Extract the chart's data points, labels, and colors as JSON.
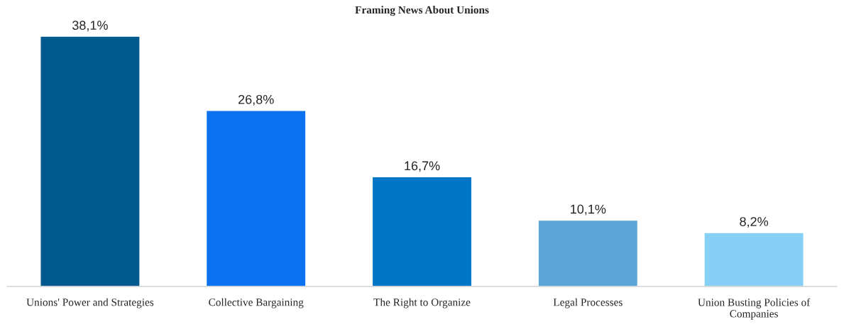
{
  "chart_data": {
    "type": "bar",
    "title": "Framing News About Unions",
    "categories": [
      "Unions' Power and Strategies",
      "Collective Bargaining",
      "The Right to Organize",
      "Legal Processes",
      "Union Busting Policies of Companies"
    ],
    "values": [
      38.1,
      26.8,
      16.7,
      10.1,
      8.2
    ],
    "value_labels": [
      "38,1%",
      "26,8%",
      "16,7%",
      "10,1%",
      "8,2%"
    ],
    "colors": [
      "#005a8e",
      "#0d72f0",
      "#0077c6",
      "#5ba6d8",
      "#87d0f5"
    ],
    "grid": false,
    "legend": false
  }
}
